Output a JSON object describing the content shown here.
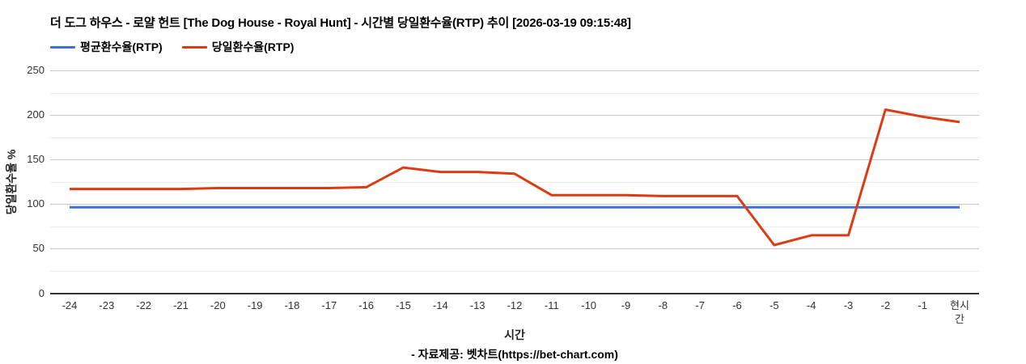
{
  "header": {
    "title": "더 도그 하우스 - 로얄 헌트 [The Dog House - Royal Hunt] - 시간별 당일환수율(RTP) 추이 [2026-03-19 09:15:48]"
  },
  "chart_data": {
    "type": "line",
    "title": "더 도그 하우스 - 로얄 헌트 [The Dog House - Royal Hunt] - 시간별 당일환수율(RTP) 추이 [2026-03-19 09:15:48]",
    "xlabel": "시간",
    "ylabel": "당일환수율 %",
    "ylim": [
      0,
      250
    ],
    "y_ticks": [
      0,
      50,
      100,
      150,
      200,
      250
    ],
    "y_minor_ticks": [
      25,
      75,
      125,
      175,
      225
    ],
    "grid": "on",
    "legend_position": "top-left",
    "x_categories": [
      "-24",
      "-23",
      "-22",
      "-21",
      "-20",
      "-19",
      "-18",
      "-17",
      "-16",
      "-15",
      "-14",
      "-13",
      "-12",
      "-11",
      "-10",
      "-9",
      "-8",
      "-7",
      "-6",
      "-5",
      "-4",
      "-3",
      "-2",
      "-1",
      "현시간"
    ],
    "series": [
      {
        "name": "평균환수율(RTP)",
        "color": "#3D6FDB",
        "values": [
          96.5,
          96.5,
          96.5,
          96.5,
          96.5,
          96.5,
          96.5,
          96.5,
          96.5,
          96.5,
          96.5,
          96.5,
          96.5,
          96.5,
          96.5,
          96.5,
          96.5,
          96.5,
          96.5,
          96.5,
          96.5,
          96.5,
          96.5,
          96.5,
          96.5
        ]
      },
      {
        "name": "당일환수율(RTP)",
        "color": "#DC3C13",
        "values": [
          117,
          117,
          117,
          117,
          118,
          118,
          118,
          118,
          119,
          141,
          136,
          136,
          134,
          110,
          110,
          110,
          109,
          109,
          109,
          54,
          65,
          65,
          206,
          198,
          192
        ]
      }
    ],
    "colors": {
      "axis": "#333333",
      "grid_major": "#cccccc",
      "grid_minor": "#ebebeb"
    }
  },
  "footer": {
    "credit": "- 자료제공: 벳차트(https://bet-chart.com)"
  }
}
